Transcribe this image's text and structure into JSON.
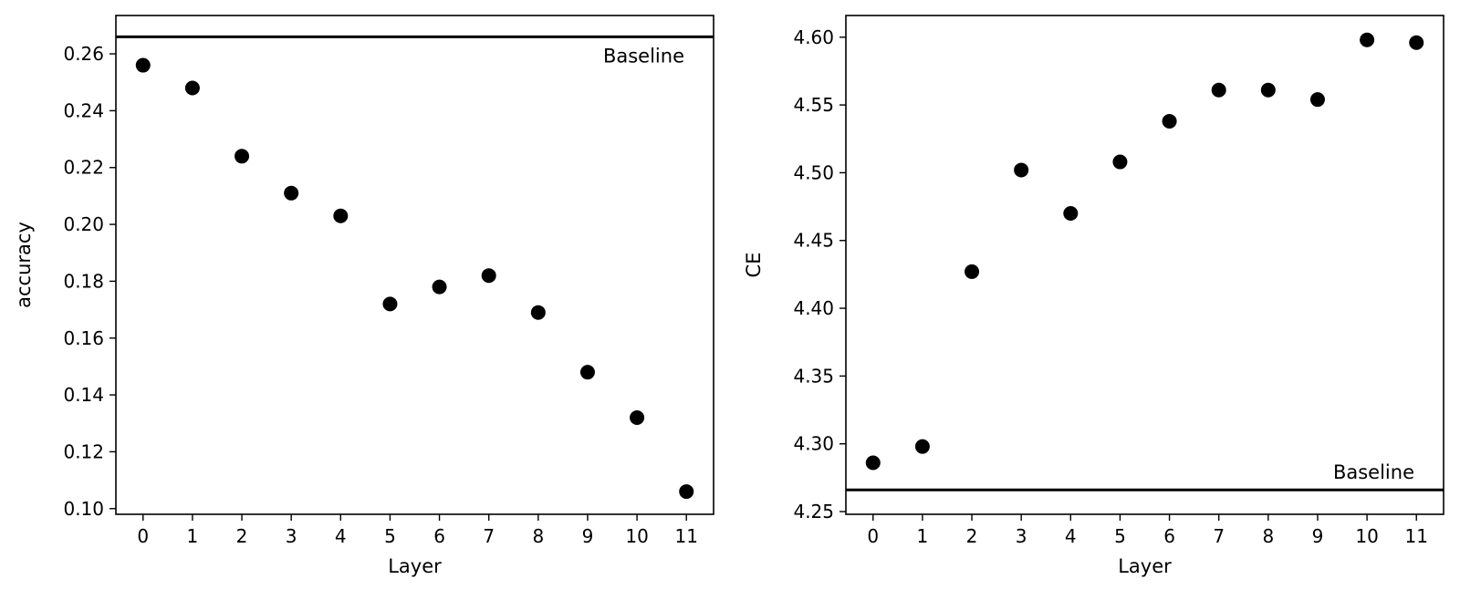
{
  "chart_data": [
    {
      "type": "scatter",
      "title": "",
      "xlabel": "Layer",
      "ylabel": "accuracy",
      "x": [
        0,
        1,
        2,
        3,
        4,
        5,
        6,
        7,
        8,
        9,
        10,
        11
      ],
      "x_tick_labels": [
        "0",
        "1",
        "2",
        "3",
        "4",
        "5",
        "6",
        "7",
        "8",
        "9",
        "10",
        "11"
      ],
      "xlim": [
        -0.55,
        11.55
      ],
      "ylim": [
        0.098,
        0.2735
      ],
      "y_ticks": [
        0.1,
        0.12,
        0.14,
        0.16,
        0.18,
        0.2,
        0.22,
        0.24,
        0.26
      ],
      "y_tick_labels": [
        "0.10",
        "0.12",
        "0.14",
        "0.16",
        "0.18",
        "0.20",
        "0.22",
        "0.24",
        "0.26"
      ],
      "series": [
        {
          "values": [
            0.256,
            0.248,
            0.224,
            0.211,
            0.203,
            0.172,
            0.178,
            0.182,
            0.169,
            0.148,
            0.132,
            0.106
          ],
          "color": "#000000"
        }
      ],
      "baseline": {
        "label": "Baseline",
        "value": 0.266,
        "label_placement": "below-right"
      },
      "grid": false,
      "legend": "none"
    },
    {
      "type": "scatter",
      "title": "",
      "xlabel": "Layer",
      "ylabel": "CE",
      "x": [
        0,
        1,
        2,
        3,
        4,
        5,
        6,
        7,
        8,
        9,
        10,
        11
      ],
      "x_tick_labels": [
        "0",
        "1",
        "2",
        "3",
        "4",
        "5",
        "6",
        "7",
        "8",
        "9",
        "10",
        "11"
      ],
      "xlim": [
        -0.55,
        11.55
      ],
      "ylim": [
        4.248,
        4.616
      ],
      "y_ticks": [
        4.25,
        4.3,
        4.35,
        4.4,
        4.45,
        4.5,
        4.55,
        4.6
      ],
      "y_tick_labels": [
        "4.25",
        "4.30",
        "4.35",
        "4.40",
        "4.45",
        "4.50",
        "4.55",
        "4.60"
      ],
      "series": [
        {
          "values": [
            4.286,
            4.298,
            4.427,
            4.502,
            4.47,
            4.508,
            4.538,
            4.561,
            4.561,
            4.554,
            4.598,
            4.596
          ],
          "color": "#000000"
        }
      ],
      "baseline": {
        "label": "Baseline",
        "value": 4.266,
        "label_placement": "above-right"
      },
      "grid": false,
      "legend": "none"
    }
  ]
}
